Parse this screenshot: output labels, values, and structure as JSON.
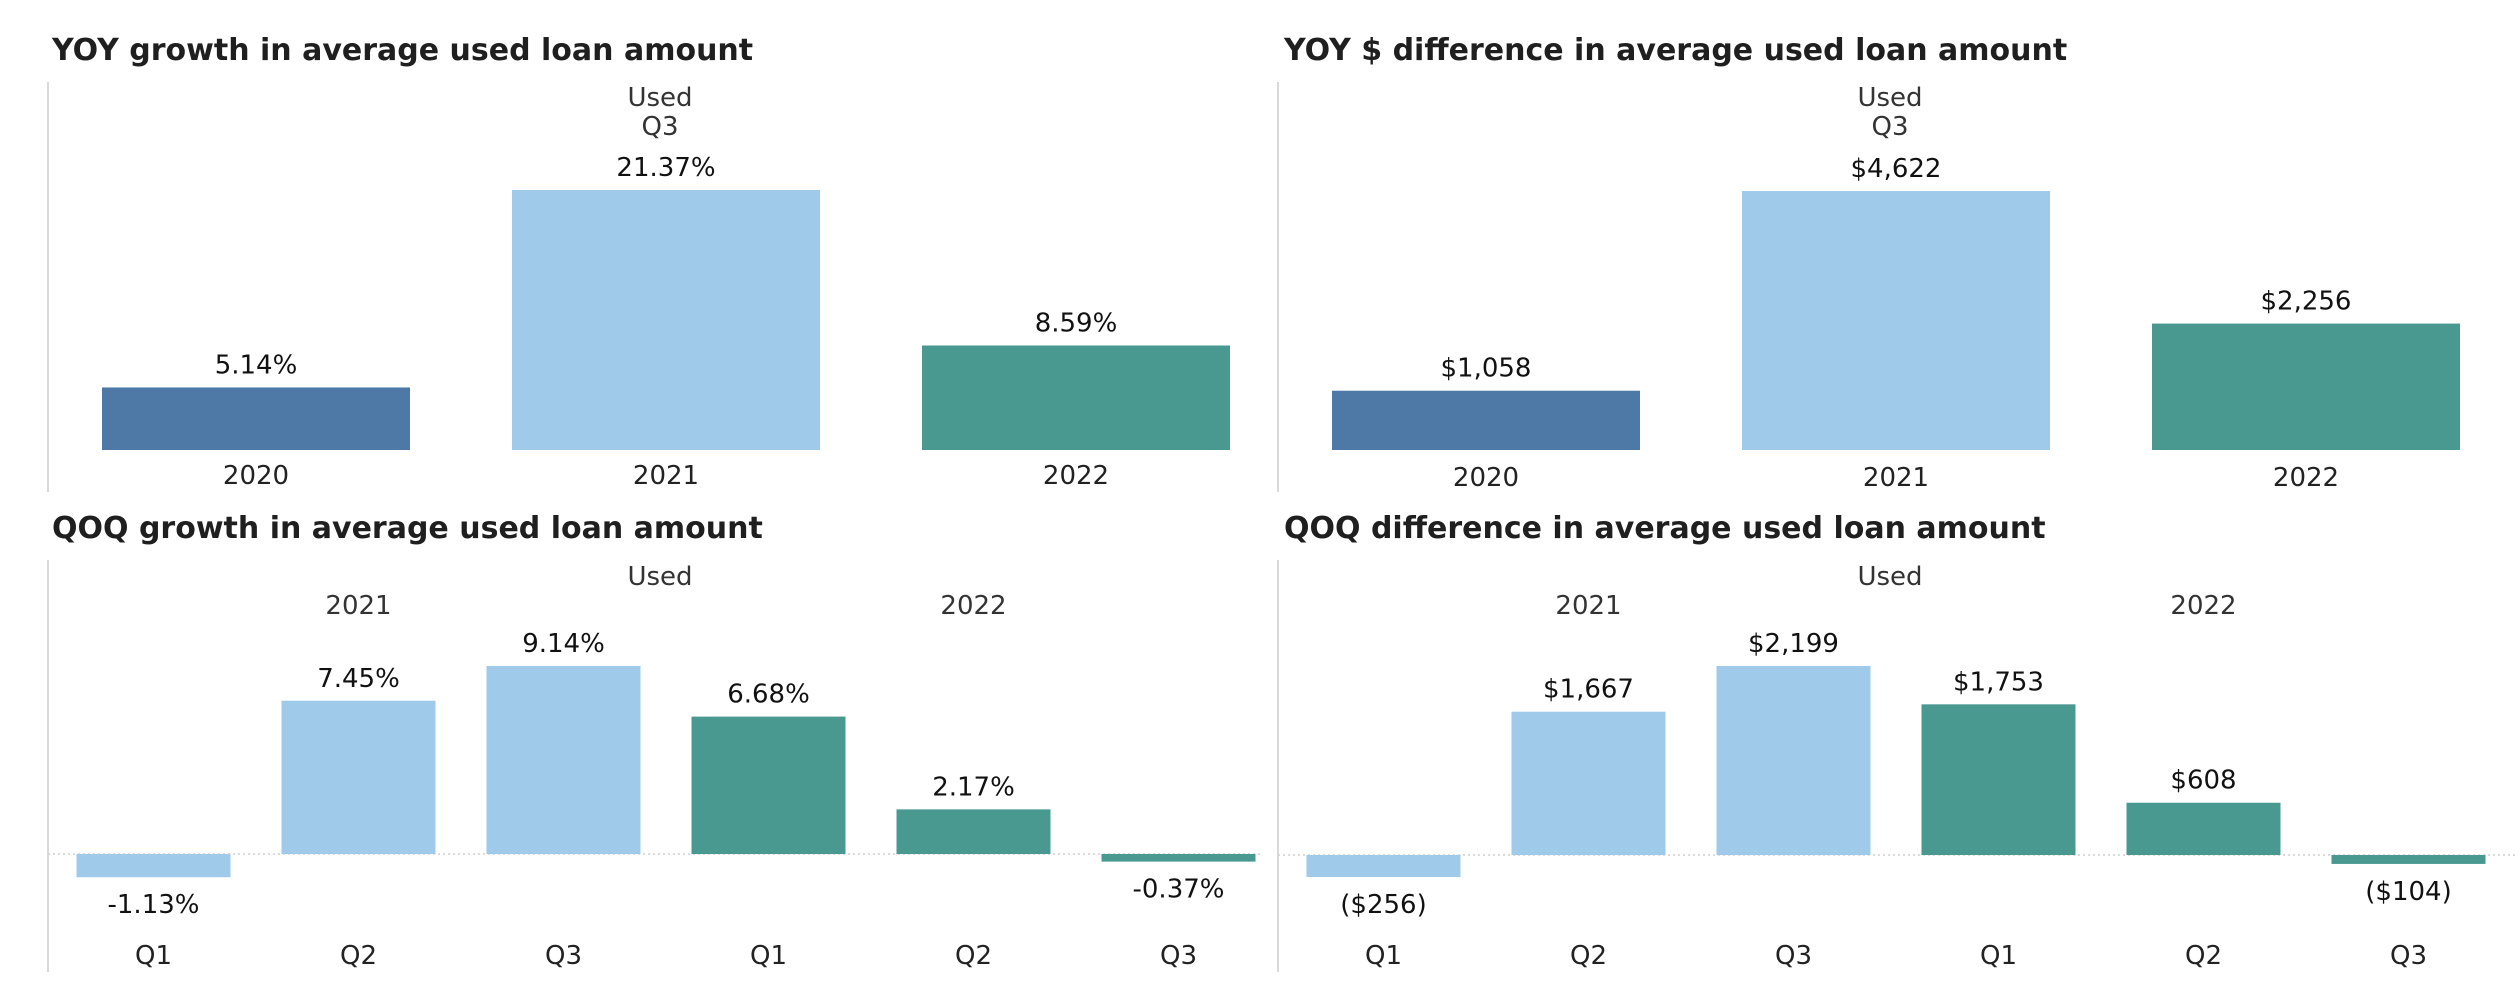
{
  "palette": {
    "y2020": "#4e79a7",
    "y2021": "#9fcae9",
    "y2022": "#4a9991"
  },
  "chart_data": [
    {
      "type": "bar",
      "title": "YOY growth in average used loan amount",
      "header": [
        "Used",
        "Q3"
      ],
      "categories": [
        "2020",
        "2021",
        "2022"
      ],
      "colors": [
        "y2020",
        "y2021",
        "y2022"
      ],
      "values": [
        5.14,
        21.37,
        8.59
      ],
      "labels": [
        "5.14%",
        "21.37%",
        "8.59%"
      ],
      "ylim": [
        0,
        21.37
      ]
    },
    {
      "type": "bar",
      "title": "YOY $ difference in average used loan amount",
      "header": [
        "Used",
        "Q3"
      ],
      "categories": [
        "2020",
        "2021",
        "2022"
      ],
      "colors": [
        "y2020",
        "y2021",
        "y2022"
      ],
      "values": [
        1058,
        4622,
        2256
      ],
      "labels": [
        "$1,058",
        "$4,622",
        "$2,256"
      ],
      "ylim": [
        0,
        4622
      ]
    },
    {
      "type": "bar",
      "title": "QOQ growth in average used loan amount",
      "header": [
        "Used"
      ],
      "groups": [
        "2021",
        "2022"
      ],
      "categories": [
        "Q1",
        "Q2",
        "Q3",
        "Q1",
        "Q2",
        "Q3"
      ],
      "colors": [
        "y2021",
        "y2021",
        "y2021",
        "y2022",
        "y2022",
        "y2022"
      ],
      "values": [
        -1.13,
        7.45,
        9.14,
        6.68,
        2.17,
        -0.37
      ],
      "labels": [
        "-1.13%",
        "7.45%",
        "9.14%",
        "6.68%",
        "2.17%",
        "-0.37%"
      ],
      "ylim": [
        -1.13,
        9.14
      ]
    },
    {
      "type": "bar",
      "title": "QOQ difference in average used loan amount",
      "header": [
        "Used"
      ],
      "groups": [
        "2021",
        "2022"
      ],
      "categories": [
        "Q1",
        "Q2",
        "Q3",
        "Q1",
        "Q2",
        "Q3"
      ],
      "colors": [
        "y2021",
        "y2021",
        "y2021",
        "y2022",
        "y2022",
        "y2022"
      ],
      "values": [
        -256,
        1667,
        2199,
        1753,
        608,
        -104
      ],
      "labels": [
        "($256)",
        "$1,667",
        "$2,199",
        "$1,753",
        "$608",
        "($104)"
      ],
      "ylim": [
        -256,
        2199
      ]
    }
  ]
}
